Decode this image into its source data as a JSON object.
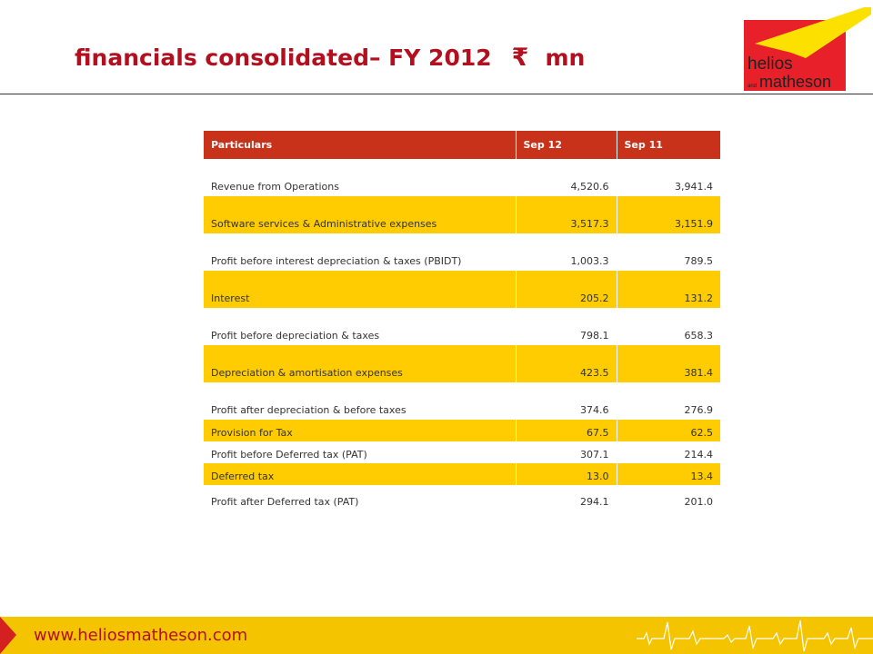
{
  "header": {
    "title": "financials consolidated– FY 2012",
    "currency_symbol": "₹",
    "unit": "mn"
  },
  "logo": {
    "text_line1": "helios",
    "text_line2_small": "and",
    "text_line2": "matheson",
    "colors": {
      "red": "#e8202a",
      "yellow": "#fce100"
    }
  },
  "table": {
    "headers": [
      "Particulars",
      "Sep 12",
      "Sep 11"
    ],
    "rows": [
      {
        "label": "Revenue from Operations",
        "sep12": "4,520.6",
        "sep11": "3,941.4"
      },
      {
        "label": "Software services & Administrative expenses",
        "sep12": "3,517.3",
        "sep11": "3,151.9"
      },
      {
        "label": "Profit before interest depreciation & taxes (PBIDT)",
        "sep12": "1,003.3",
        "sep11": "789.5"
      },
      {
        "label": "Interest",
        "sep12": "205.2",
        "sep11": "131.2"
      },
      {
        "label": "Profit before depreciation & taxes",
        "sep12": "798.1",
        "sep11": "658.3"
      },
      {
        "label": "Depreciation & amortisation expenses",
        "sep12": "423.5",
        "sep11": "381.4"
      },
      {
        "label": "Profit after depreciation & before taxes",
        "sep12": "374.6",
        "sep11": "276.9"
      },
      {
        "label": "Provision for Tax",
        "sep12": "67.5",
        "sep11": "62.5"
      },
      {
        "label": "Profit before Deferred tax (PAT)",
        "sep12": "307.1",
        "sep11": "214.4"
      },
      {
        "label": "Deferred tax",
        "sep12": "13.0",
        "sep11": "13.4"
      },
      {
        "label": "Profit after Deferred tax (PAT)",
        "sep12": "294.1",
        "sep11": "201.0"
      }
    ]
  },
  "footer": {
    "url": "www.heliosmatheson.com"
  },
  "colors": {
    "title": "#b30f1e",
    "header_bg": "#c8321a",
    "highlight_row": "#fecc00",
    "footer_bg": "#f5c400"
  }
}
